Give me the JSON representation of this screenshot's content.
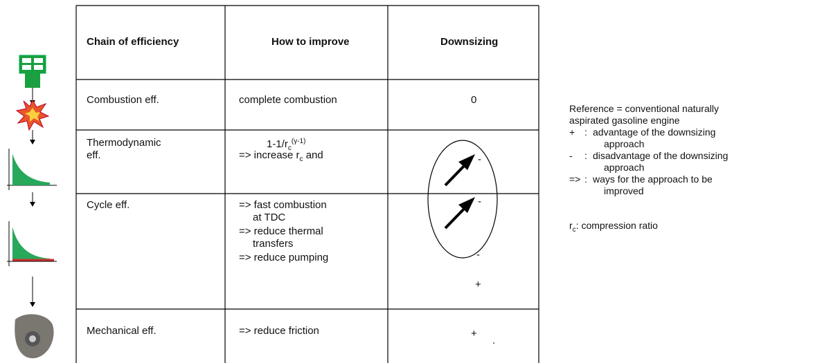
{
  "table": {
    "header": [
      "Chain of efficiency",
      "How to improve",
      "Downsizing"
    ],
    "rows": [
      {
        "chain": "Combustion eff.",
        "improve": [
          "complete combustion"
        ],
        "downsizing": [
          "0"
        ]
      },
      {
        "chain": "Thermodynamic eff.",
        "formula": {
          "text": "1-1/r",
          "sub": "c",
          "sup": "(γ-1)"
        },
        "improve_line": {
          "text": "=> increase r",
          "sub": "c",
          "after": " and"
        },
        "downsizing": [
          "-"
        ]
      },
      {
        "chain": "Cycle eff.",
        "improve": [
          "=> fast combustion",
          "at TDC",
          "=> reduce thermal",
          "transfers",
          "=> reduce pumping"
        ],
        "downsizing": [
          "-",
          "-",
          "+"
        ]
      },
      {
        "chain": "Mechanical eff.",
        "improve": [
          "=> reduce friction"
        ],
        "downsizing": [
          "+",
          "."
        ]
      }
    ]
  },
  "legend": {
    "reference": [
      "Reference = conventional naturally",
      "aspirated gasoline engine"
    ],
    "items": [
      {
        "symbol": "+",
        "sep": ":",
        "lines": [
          "advantage of the downsizing",
          "approach"
        ]
      },
      {
        "symbol": "-",
        "sep": ":",
        "lines": [
          "disadvantage of the downsizing",
          "approach"
        ]
      },
      {
        "symbol": "=>",
        "sep": ":",
        "lines": [
          "ways for the approach to be",
          "improved"
        ]
      }
    ],
    "rc": {
      "text": "r",
      "sub": "c",
      "after": ": compression ratio"
    }
  }
}
